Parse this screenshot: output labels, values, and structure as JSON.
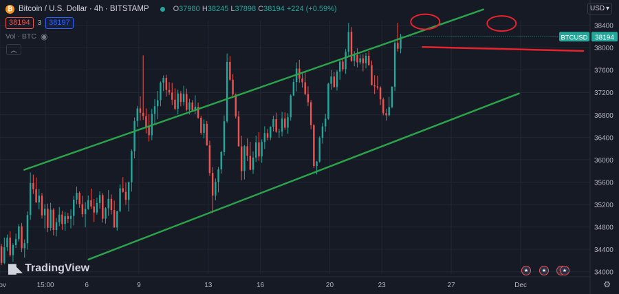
{
  "header": {
    "symbol_title": "Bitcoin / U.S. Dollar · 4h · BITSTAMP",
    "ohlc": {
      "o_label": "O",
      "o": "37980",
      "h_label": "H",
      "h": "38245",
      "l_label": "L",
      "l": "37898",
      "c_label": "C",
      "c": "38194",
      "change": "+224 (+0.59%)"
    },
    "sell_price": "38194",
    "spread": "3",
    "buy_price": "38197",
    "volume_label": "Vol · BTC",
    "currency": "USD"
  },
  "branding": {
    "logo_text": "TradingView"
  },
  "colors": {
    "background": "#161a25",
    "up": "#26a69a",
    "down": "#ef5350",
    "channel": "#2ca24a",
    "annotation": "#e8232d",
    "grid": "#232735"
  },
  "icons": [
    "btc-coin-icon",
    "eye-icon",
    "collapse-icon",
    "chevron-down-icon",
    "tradingview-logo-icon",
    "us-flag-icon",
    "settings-icon"
  ],
  "chart_data": {
    "type": "candlestick",
    "symbol": "BTCUSD",
    "last_price": "38194",
    "y_ticks": [
      34000,
      34400,
      34800,
      35200,
      35600,
      36000,
      36400,
      36800,
      37200,
      37600,
      38000,
      38400
    ],
    "y_range": [
      33960,
      38480
    ],
    "x_range_days": [
      0,
      34
    ],
    "x_tick_labels": [
      {
        "label": "Nov",
        "day": 0
      },
      {
        "label": "15:00",
        "day": 2.62
      },
      {
        "label": "6",
        "day": 5
      },
      {
        "label": "9",
        "day": 8
      },
      {
        "label": "13",
        "day": 12
      },
      {
        "label": "16",
        "day": 15
      },
      {
        "label": "20",
        "day": 19
      },
      {
        "label": "23",
        "day": 22
      },
      {
        "label": "27",
        "day": 26
      },
      {
        "label": "Dec",
        "day": 30
      }
    ],
    "candles_per_day": 6,
    "candles": [
      [
        34452,
        34495,
        34118,
        34159
      ],
      [
        34159,
        34610,
        34135,
        34437
      ],
      [
        34437,
        34665,
        34370,
        34608
      ],
      [
        34608,
        34721,
        34270,
        34298
      ],
      [
        34298,
        34510,
        34179,
        34476
      ],
      [
        34476,
        34682,
        34426,
        34583
      ],
      [
        34583,
        34851,
        34541,
        34812
      ],
      [
        34812,
        34871,
        34351,
        34420
      ],
      [
        34420,
        34578,
        34251,
        34510
      ],
      [
        34510,
        35079,
        34396,
        35013
      ],
      [
        35013,
        35773,
        34926,
        35582
      ],
      [
        35582,
        35733,
        35390,
        35475
      ],
      [
        35475,
        35682,
        35229,
        35238
      ],
      [
        35238,
        35478,
        35113,
        35358
      ],
      [
        35358,
        35408,
        34950,
        35007
      ],
      [
        35007,
        35208,
        34776,
        35122
      ],
      [
        35122,
        35216,
        34707,
        34784
      ],
      [
        34784,
        35229,
        34734,
        35108
      ],
      [
        35108,
        35136,
        34650,
        34747
      ],
      [
        34747,
        34961,
        34632,
        34882
      ],
      [
        34882,
        35155,
        34815,
        35020
      ],
      [
        35020,
        35085,
        34748,
        34853
      ],
      [
        34853,
        35069,
        34734,
        34993
      ],
      [
        34993,
        35050,
        34870,
        34944
      ],
      [
        34944,
        35113,
        34774,
        34997
      ],
      [
        34997,
        35354,
        34825,
        35286
      ],
      [
        35286,
        35521,
        35206,
        35409
      ],
      [
        35409,
        35434,
        35140,
        35206
      ],
      [
        35206,
        35356,
        34974,
        35027
      ],
      [
        35027,
        35243,
        34793,
        35123
      ],
      [
        35123,
        35361,
        35105,
        35278
      ],
      [
        35278,
        35484,
        35123,
        35166
      ],
      [
        35166,
        35300,
        34888,
        35057
      ],
      [
        35057,
        35319,
        35019,
        35227
      ],
      [
        35227,
        35437,
        35125,
        35368
      ],
      [
        35368,
        35404,
        34879,
        34947
      ],
      [
        34947,
        35152,
        34860,
        35134
      ],
      [
        35134,
        35459,
        34998,
        35301
      ],
      [
        35301,
        35380,
        35022,
        35101
      ],
      [
        35101,
        35270,
        34784,
        34791
      ],
      [
        34791,
        35088,
        34734,
        35082
      ],
      [
        35082,
        35561,
        35062,
        35489
      ],
      [
        35489,
        35688,
        35411,
        35427
      ],
      [
        35427,
        35591,
        35195,
        35282
      ],
      [
        35282,
        35610,
        35075,
        35597
      ],
      [
        35597,
        36182,
        35431,
        36151
      ],
      [
        36151,
        36752,
        36023,
        36690
      ],
      [
        36690,
        36959,
        36589,
        36915
      ],
      [
        36915,
        37131,
        36699,
        36836
      ],
      [
        36836,
        37861,
        36709,
        36778
      ],
      [
        36778,
        36914,
        36468,
        36584
      ],
      [
        36584,
        36812,
        36324,
        36436
      ],
      [
        36436,
        36904,
        36347,
        36816
      ],
      [
        36816,
        37081,
        36620,
        36954
      ],
      [
        36954,
        37227,
        36722,
        37061
      ],
      [
        37061,
        37398,
        36954,
        37374
      ],
      [
        37374,
        37502,
        37222,
        37459
      ],
      [
        37459,
        37515,
        37125,
        37243
      ],
      [
        37243,
        37383,
        37152,
        37197
      ],
      [
        37197,
        37372,
        36977,
        37071
      ],
      [
        37071,
        37272,
        36882,
        36907
      ],
      [
        36907,
        37247,
        36808,
        37181
      ],
      [
        37181,
        37225,
        36952,
        37029
      ],
      [
        37029,
        37320,
        36962,
        37174
      ],
      [
        37174,
        37268,
        36863,
        36890
      ],
      [
        36890,
        37086,
        36807,
        37021
      ],
      [
        37021,
        37064,
        36876,
        36881
      ],
      [
        36881,
        37147,
        36810,
        36945
      ],
      [
        36945,
        37018,
        36727,
        36747
      ],
      [
        36747,
        36781,
        36447,
        36479
      ],
      [
        36479,
        36721,
        36379,
        36640
      ],
      [
        36640,
        36690,
        36248,
        36256
      ],
      [
        36256,
        36339,
        35716,
        35765
      ],
      [
        35765,
        35868,
        35048,
        35360
      ],
      [
        35360,
        35663,
        35275,
        35604
      ],
      [
        35604,
        35869,
        35416,
        35828
      ],
      [
        35828,
        36157,
        35751,
        36136
      ],
      [
        36136,
        36789,
        36070,
        36684
      ],
      [
        36684,
        37894,
        36657,
        37744
      ],
      [
        37744,
        37848,
        37404,
        37426
      ],
      [
        37426,
        37525,
        37128,
        37162
      ],
      [
        37162,
        37182,
        36734,
        36771
      ],
      [
        36771,
        36867,
        36236,
        36237
      ],
      [
        36237,
        36426,
        35632,
        35797
      ],
      [
        35797,
        36261,
        35647,
        36241
      ],
      [
        36241,
        36380,
        35974,
        36069
      ],
      [
        36069,
        36318,
        35811,
        35821
      ],
      [
        35821,
        36149,
        35747,
        36037
      ],
      [
        36037,
        36429,
        35960,
        36309
      ],
      [
        36309,
        36489,
        35982,
        36058
      ],
      [
        36058,
        36364,
        35944,
        36316
      ],
      [
        36316,
        36596,
        36189,
        36474
      ],
      [
        36474,
        36546,
        36346,
        36394
      ],
      [
        36394,
        36596,
        36348,
        36587
      ],
      [
        36587,
        36786,
        36504,
        36723
      ],
      [
        36723,
        36838,
        36481,
        36498
      ],
      [
        36498,
        36552,
        36392,
        36500
      ],
      [
        36500,
        36852,
        36414,
        36733
      ],
      [
        36733,
        36845,
        36533,
        36571
      ],
      [
        36571,
        36829,
        36461,
        36757
      ],
      [
        36757,
        37168,
        36696,
        37145
      ],
      [
        37145,
        37444,
        37134,
        37386
      ],
      [
        37386,
        37734,
        37218,
        37626
      ],
      [
        37626,
        37780,
        37374,
        37448
      ],
      [
        37448,
        37544,
        37284,
        37381
      ],
      [
        37381,
        37560,
        37149,
        37170
      ],
      [
        37170,
        37310,
        36956,
        37025
      ],
      [
        37025,
        37064,
        36543,
        36616
      ],
      [
        36616,
        36633,
        35850,
        35888
      ],
      [
        35888,
        35977,
        35737,
        35967
      ],
      [
        35967,
        36418,
        35946,
        36391
      ],
      [
        36391,
        36655,
        36287,
        36594
      ],
      [
        36594,
        36819,
        36499,
        36731
      ],
      [
        36731,
        37374,
        36710,
        37354
      ],
      [
        37354,
        37599,
        37247,
        37484
      ],
      [
        37484,
        37567,
        37281,
        37297
      ],
      [
        37297,
        37600,
        37232,
        37571
      ],
      [
        37571,
        37773,
        37425,
        37749
      ],
      [
        37749,
        37810,
        37576,
        37615
      ],
      [
        37615,
        37973,
        37530,
        37923
      ],
      [
        37923,
        38440,
        37830,
        38283
      ],
      [
        38283,
        38367,
        37745,
        37761
      ],
      [
        37761,
        37936,
        37667,
        37866
      ],
      [
        37866,
        37987,
        37644,
        37737
      ],
      [
        37737,
        37883,
        37701,
        37809
      ],
      [
        37809,
        37878,
        37577,
        37721
      ],
      [
        37721,
        37905,
        37628,
        37854
      ],
      [
        37854,
        37939,
        37678,
        37684
      ],
      [
        37684,
        37769,
        37324,
        37330
      ],
      [
        37330,
        37507,
        37170,
        37307
      ],
      [
        37307,
        37499,
        37249,
        37286
      ],
      [
        37286,
        37309,
        36972,
        37076
      ],
      [
        37076,
        37108,
        36793,
        36829
      ],
      [
        36829,
        36909,
        36697,
        36792
      ],
      [
        36792,
        37123,
        36769,
        36938
      ],
      [
        36938,
        37310,
        36918,
        37301
      ],
      [
        37301,
        38129,
        37224,
        38083
      ],
      [
        38083,
        38440,
        37926,
        37980
      ],
      [
        37980,
        38245,
        37898,
        38194
      ]
    ]
  },
  "annotations": {
    "channel_upper": [
      {
        "day": 1.4,
        "price": 35820
      },
      {
        "day": 27.85,
        "price": 38680
      }
    ],
    "channel_lower": [
      {
        "day": 5.1,
        "price": 34220
      },
      {
        "day": 29.9,
        "price": 37180
      }
    ],
    "resistance": [
      {
        "day": 24.35,
        "price": 38010
      },
      {
        "day": 33.6,
        "price": 37940
      }
    ],
    "highlight_ellipses": [
      {
        "day": 24.5,
        "price": 38460
      },
      {
        "day": 28.9,
        "price": 38430
      }
    ]
  }
}
